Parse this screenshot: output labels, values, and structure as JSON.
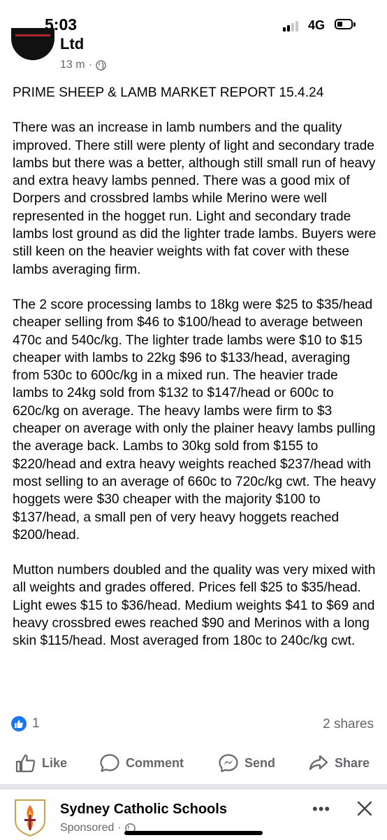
{
  "status_bar": {
    "time": "5:03",
    "network": "4G",
    "signal_bars_active": 2,
    "signal_bars_total": 4
  },
  "post": {
    "page_name_fragment": "Ltd",
    "time_ago": "13 m",
    "separator_dot": "·",
    "privacy_icon": "globe-icon",
    "paragraphs": [
      "PRIME SHEEP & LAMB MARKET REPORT 15.4.24",
      "There was an increase in lamb numbers and the quality improved. There still were plenty of light and secondary trade lambs but there was a better, although still small run of heavy and extra heavy lambs penned. There was a good mix of Dorpers and crossbred lambs while Merino were well represented in the hogget run. Light and secondary trade lambs lost ground as did the lighter trade lambs. Buyers were still keen on the heavier weights with fat cover with these lambs averaging firm.",
      "The 2 score processing lambs to 18kg were $25 to $35/head cheaper selling from $46 to $100/head to average between 470c and 540c/kg. The lighter trade lambs were $10 to $15 cheaper with lambs to 22kg $96 to $133/head, averaging from 530c to 600c/kg in a mixed run. The heavier trade lambs to 24kg sold from $132 to $147/head or 600c to 620c/kg on average. The heavy lambs were firm to $3 cheaper on average with only the plainer heavy lambs pulling the average back. Lambs to 30kg sold from $155 to $220/head and extra heavy weights reached $237/head with most selling to an average of 660c to 720c/kg cwt. The heavy hoggets were $30 cheaper with the majority $100 to $137/head, a small pen of very heavy hoggets reached $200/head.",
      "Mutton numbers doubled and the quality was very mixed with all weights and grades offered. Prices fell $25 to $35/head. Light ewes $15 to $36/head. Medium weights $41 to $69 and heavy crossbred ewes reached $90 and Merinos with a long skin $115/head. Most averaged from 180c to 240c/kg cwt."
    ],
    "reaction_count": "1",
    "shares": "2 shares",
    "actions": {
      "like": "Like",
      "comment": "Comment",
      "send": "Send",
      "share": "Share"
    }
  },
  "sponsored": {
    "name": "Sydney Catholic Schools",
    "label": "Sponsored",
    "separator_dot": "·",
    "more": "•••"
  },
  "colors": {
    "accent": "#1877f2",
    "secondary_text": "#65676b",
    "primary_text": "#050505",
    "divider": "#e4e6eb"
  }
}
